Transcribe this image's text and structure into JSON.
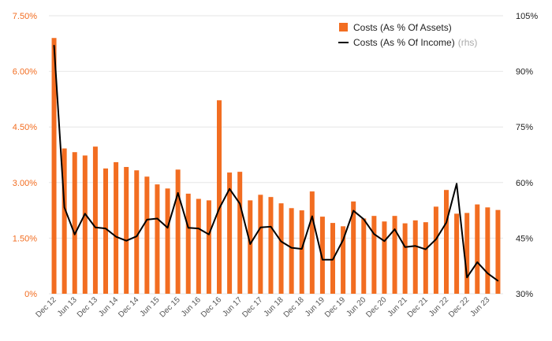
{
  "chart_data": {
    "type": "bar+line",
    "title": "",
    "legend_position": "top-right",
    "colors": {
      "bars": "#f26d21",
      "line": "#000000",
      "left_ticks": "#f26d21",
      "right_ticks": "#222222",
      "grid": "#e6e6e6"
    },
    "left_axis": {
      "min": 0,
      "max": 7.5,
      "ticks": [
        "0%",
        "1.50%",
        "3.00%",
        "4.50%",
        "6.00%",
        "7.50%"
      ]
    },
    "right_axis": {
      "min": 30,
      "max": 105,
      "ticks": [
        "30%",
        "45%",
        "60%",
        "75%",
        "90%",
        "105%"
      ]
    },
    "x_tick_labels": [
      {
        "index": 0,
        "label": "Dec 12"
      },
      {
        "index": 2,
        "label": "Jun 13"
      },
      {
        "index": 4,
        "label": "Dec 13"
      },
      {
        "index": 6,
        "label": "Jun 14"
      },
      {
        "index": 8,
        "label": "Dec 14"
      },
      {
        "index": 10,
        "label": "Jun 15"
      },
      {
        "index": 12,
        "label": "Dec 15"
      },
      {
        "index": 14,
        "label": "Jun 16"
      },
      {
        "index": 16,
        "label": "Dec 16"
      },
      {
        "index": 18,
        "label": "Jun 17"
      },
      {
        "index": 20,
        "label": "Dec 17"
      },
      {
        "index": 22,
        "label": "Jun 18"
      },
      {
        "index": 24,
        "label": "Dec 18"
      },
      {
        "index": 26,
        "label": "Jun 19"
      },
      {
        "index": 28,
        "label": "Dec 19"
      },
      {
        "index": 30,
        "label": "Jun 20"
      },
      {
        "index": 32,
        "label": "Dec 20"
      },
      {
        "index": 34,
        "label": "Jun 21"
      },
      {
        "index": 36,
        "label": "Dec 21"
      },
      {
        "index": 38,
        "label": "Jun 22"
      },
      {
        "index": 40,
        "label": "Dec 22"
      },
      {
        "index": 42,
        "label": "Jun 23"
      }
    ],
    "series": [
      {
        "name": "Costs (As % Of Assets)",
        "axis": "left",
        "kind": "bar",
        "values": [
          6.9,
          3.92,
          3.82,
          3.73,
          3.97,
          3.38,
          3.55,
          3.42,
          3.33,
          3.16,
          2.95,
          2.84,
          3.35,
          2.7,
          2.56,
          2.52,
          5.22,
          3.27,
          3.29,
          2.52,
          2.67,
          2.61,
          2.44,
          2.31,
          2.25,
          2.76,
          2.08,
          1.91,
          1.82,
          2.49,
          2.03,
          2.1,
          1.95,
          2.1,
          1.9,
          1.98,
          1.93,
          2.35,
          2.8,
          2.16,
          2.18,
          2.41,
          2.33,
          2.26
        ]
      },
      {
        "name": "Costs (As % Of Income)",
        "axis": "right",
        "kind": "line",
        "legend_suffix": "(rhs)",
        "values": [
          97.0,
          53.3,
          46.0,
          51.6,
          47.9,
          47.6,
          45.4,
          44.3,
          45.5,
          50.0,
          50.3,
          47.8,
          57.2,
          47.8,
          47.6,
          46.0,
          53.0,
          58.3,
          54.3,
          43.4,
          47.9,
          48.1,
          44.1,
          42.4,
          42.1,
          50.9,
          39.2,
          39.2,
          44.5,
          52.4,
          50.1,
          46.1,
          44.2,
          47.4,
          42.6,
          42.9,
          42.0,
          44.7,
          49.2,
          59.7,
          34.4,
          38.5,
          35.5,
          33.5
        ]
      }
    ]
  }
}
